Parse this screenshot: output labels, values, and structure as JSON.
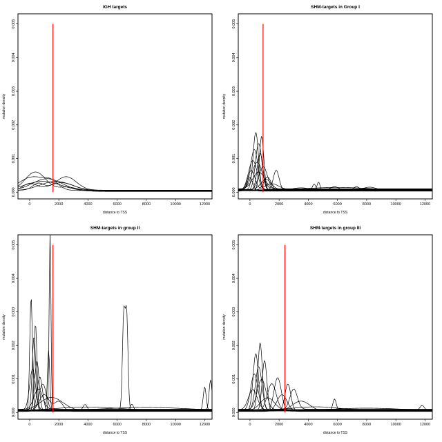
{
  "chart_data": [
    {
      "type": "line",
      "title": "IGH targets",
      "xlabel": "distance to TSS",
      "ylabel": "mutation density",
      "xlim": [
        -800,
        12500
      ],
      "ylim": [
        -0.0002,
        0.0053
      ],
      "x_ticks": [
        0,
        2000,
        4000,
        6000,
        8000,
        10000,
        12000
      ],
      "y_ticks": [
        0.0,
        0.001,
        0.002,
        0.003,
        0.004,
        0.005
      ],
      "y_tick_labels": [
        "0.000",
        "0.001",
        "0.002",
        "0.003",
        "0.004",
        "0.005"
      ],
      "reference_line": {
        "x": 1600,
        "y_top": 0.005,
        "color": "#ff0000"
      },
      "series_color": "#000000",
      "series": [
        {
          "peaks": [
            [
              400,
              0.00055,
              700
            ],
            [
              2600,
              0.0001,
              600
            ]
          ],
          "base": 5e-05
        },
        {
          "peaks": [
            [
              200,
              0.0004,
              900
            ],
            [
              1500,
              0.0002,
              500
            ]
          ],
          "base": 5e-05
        },
        {
          "peaks": [
            [
              1200,
              0.00035,
              1000
            ]
          ],
          "base": 5e-05
        },
        {
          "peaks": [
            [
              2500,
              0.0004,
              700
            ],
            [
              600,
              0.0002,
              400
            ]
          ],
          "base": 6e-05
        },
        {
          "peaks": [
            [
              1800,
              0.00028,
              1100
            ]
          ],
          "base": 4e-05
        },
        {
          "peaks": [
            [
              0,
              0.00022,
              500
            ],
            [
              2200,
              0.00025,
              900
            ]
          ],
          "base": 3e-05
        },
        {
          "peaks": [
            [
              900,
              0.0003,
              1300
            ]
          ],
          "base": 2e-05
        }
      ]
    },
    {
      "type": "line",
      "title": "SHM-targets in Group I",
      "xlabel": "distance to TSS",
      "ylabel": "mutation density",
      "xlim": [
        -800,
        12500
      ],
      "ylim": [
        -0.0002,
        0.0053
      ],
      "x_ticks": [
        0,
        2000,
        4000,
        6000,
        8000,
        10000,
        12000
      ],
      "y_ticks": [
        0.0,
        0.001,
        0.002,
        0.003,
        0.004,
        0.005
      ],
      "y_tick_labels": [
        "0.000",
        "0.001",
        "0.002",
        "0.003",
        "0.004",
        "0.005"
      ],
      "reference_line": {
        "x": 900,
        "y_top": 0.005,
        "color": "#ff0000"
      },
      "series_color": "#000000",
      "series": [
        {
          "peaks": [
            [
              400,
              0.0017,
              180
            ]
          ],
          "base": 8e-05
        },
        {
          "peaks": [
            [
              800,
              0.0016,
              150
            ]
          ],
          "base": 6e-05
        },
        {
          "peaks": [
            [
              600,
              0.0014,
              220
            ]
          ],
          "base": 5e-05
        },
        {
          "peaks": [
            [
              300,
              0.0012,
              250
            ]
          ],
          "base": 7e-05
        },
        {
          "peaks": [
            [
              700,
              0.0011,
              200
            ],
            [
              1800,
              0.0006,
              200
            ]
          ],
          "base": 5e-05
        },
        {
          "peaks": [
            [
              200,
              0.0009,
              300
            ]
          ],
          "base": 4e-05
        },
        {
          "peaks": [
            [
              500,
              0.0008,
              350
            ]
          ],
          "base": 9e-05
        },
        {
          "peaks": [
            [
              900,
              0.0007,
              300
            ]
          ],
          "base": 6e-05
        },
        {
          "peaks": [
            [
              100,
              0.0006,
              250
            ],
            [
              1200,
              0.0004,
              250
            ]
          ],
          "base": 5e-05
        },
        {
          "peaks": [
            [
              600,
              0.0005,
              400
            ]
          ],
          "base": 0.0001
        },
        {
          "peaks": [
            [
              0,
              0.0004,
              200
            ]
          ],
          "base": 3e-05
        },
        {
          "peaks": [
            [
              1100,
              0.0003,
              350
            ]
          ],
          "base": 8e-05
        },
        {
          "peaks": [
            [
              4400,
              0.0002,
              120
            ]
          ],
          "base": 4e-05
        },
        {
          "peaks": [
            [
              4700,
              0.00025,
              100
            ]
          ],
          "base": 5e-05
        },
        {
          "peaks": [
            [
              5800,
              0.0001,
              300
            ],
            [
              7300,
              0.0001,
              200
            ]
          ],
          "base": 6e-05
        },
        {
          "peaks": [
            [
              8200,
              8e-05,
              400
            ]
          ],
          "base": 7e-05
        },
        {
          "peaks": [
            [
              1500,
              0.0002,
              500
            ],
            [
              3500,
              8e-05,
              600
            ]
          ],
          "base": 5e-05
        },
        {
          "peaks": [
            [
              6000,
              0.0001,
              2500
            ]
          ],
          "base": 4e-05
        }
      ]
    },
    {
      "type": "line",
      "title": "SHM-targets in group II",
      "xlabel": "distance to TSS",
      "ylabel": "mutation density",
      "xlim": [
        -800,
        12500
      ],
      "ylim": [
        -0.0002,
        0.0053
      ],
      "x_ticks": [
        0,
        2000,
        4000,
        6000,
        8000,
        10000,
        12000
      ],
      "y_ticks": [
        0.0,
        0.001,
        0.002,
        0.003,
        0.004,
        0.005
      ],
      "y_tick_labels": [
        "0.000",
        "0.001",
        "0.002",
        "0.003",
        "0.004",
        "0.005"
      ],
      "reference_line": {
        "x": 1600,
        "y_top": 0.005,
        "color": "#ff0000"
      },
      "series_color": "#000000",
      "series": [
        {
          "peaks": [
            [
              1400,
              0.0053,
              60
            ]
          ],
          "base": 8e-05
        },
        {
          "peaks": [
            [
              100,
              0.0034,
              90
            ]
          ],
          "base": 6e-05
        },
        {
          "peaks": [
            [
              400,
              0.0026,
              100
            ]
          ],
          "base": 5e-05
        },
        {
          "peaks": [
            [
              300,
              0.0022,
              120
            ]
          ],
          "base": 7e-05
        },
        {
          "peaks": [
            [
              1300,
              0.0018,
              80
            ]
          ],
          "base": 5e-05
        },
        {
          "peaks": [
            [
              500,
              0.0015,
              150
            ]
          ],
          "base": 4e-05
        },
        {
          "peaks": [
            [
              200,
              0.0012,
              200
            ]
          ],
          "base": 9e-05
        },
        {
          "peaks": [
            [
              700,
              0.001,
              180
            ]
          ],
          "base": 6e-05
        },
        {
          "peaks": [
            [
              900,
              0.0008,
              250
            ]
          ],
          "base": 5e-05
        },
        {
          "peaks": [
            [
              600,
              0.0006,
              300
            ]
          ],
          "base": 0.0001
        },
        {
          "peaks": [
            [
              1000,
              0.0005,
              350
            ],
            [
              2000,
              0.0003,
              300
            ]
          ],
          "base": 3e-05
        },
        {
          "peaks": [
            [
              6450,
              0.0028,
              90
            ],
            [
              6650,
              0.0028,
              90
            ]
          ],
          "base": 8e-05
        },
        {
          "peaks": [
            [
              3800,
              0.0002,
              150
            ]
          ],
          "base": 4e-05
        },
        {
          "peaks": [
            [
              7000,
              0.0002,
              120
            ]
          ],
          "base": 5e-05
        },
        {
          "peaks": [
            [
              12000,
              0.0007,
              100
            ]
          ],
          "base": 6e-05
        },
        {
          "peaks": [
            [
              12400,
              0.0009,
              100
            ]
          ],
          "base": 7e-05
        },
        {
          "peaks": [
            [
              8000,
              0.0001,
              3000
            ]
          ],
          "base": 5e-05
        },
        {
          "peaks": [
            [
              4000,
              0.00012,
              2500
            ]
          ],
          "base": 4e-05
        },
        {
          "peaks": [
            [
              1500,
              0.0004,
              800
            ]
          ],
          "base": 5e-05
        }
      ]
    },
    {
      "type": "line",
      "title": "SHM-targets in group III",
      "xlabel": "distance to TSS",
      "ylabel": "mutation density",
      "xlim": [
        -800,
        12500
      ],
      "ylim": [
        -0.0002,
        0.0053
      ],
      "x_ticks": [
        0,
        2000,
        4000,
        6000,
        8000,
        10000,
        12000
      ],
      "y_ticks": [
        0.0,
        0.001,
        0.002,
        0.003,
        0.004,
        0.005
      ],
      "y_tick_labels": [
        "0.000",
        "0.001",
        "0.002",
        "0.003",
        "0.004",
        "0.005"
      ],
      "reference_line": {
        "x": 2400,
        "y_top": 0.005,
        "color": "#ff0000"
      },
      "series_color": "#000000",
      "series": [
        {
          "peaks": [
            [
              700,
              0.002,
              150
            ]
          ],
          "base": 8e-05
        },
        {
          "peaks": [
            [
              400,
              0.0017,
              180
            ]
          ],
          "base": 6e-05
        },
        {
          "peaks": [
            [
              1000,
              0.0015,
              160
            ]
          ],
          "base": 5e-05
        },
        {
          "peaks": [
            [
              600,
              0.0013,
              220
            ]
          ],
          "base": 7e-05
        },
        {
          "peaks": [
            [
              300,
              0.0011,
              250
            ]
          ],
          "base": 5e-05
        },
        {
          "peaks": [
            [
              1900,
              0.001,
              250
            ]
          ],
          "base": 4e-05
        },
        {
          "peaks": [
            [
              800,
              0.0009,
              300
            ]
          ],
          "base": 9e-05
        },
        {
          "peaks": [
            [
              1500,
              0.0008,
              300
            ]
          ],
          "base": 6e-05
        },
        {
          "peaks": [
            [
              2600,
              0.0008,
              200
            ]
          ],
          "base": 5e-05
        },
        {
          "peaks": [
            [
              3000,
              0.0006,
              250
            ]
          ],
          "base": 0.0001
        },
        {
          "peaks": [
            [
              2200,
              0.0005,
              350
            ]
          ],
          "base": 3e-05
        },
        {
          "peaks": [
            [
              200,
              0.0006,
              300
            ]
          ],
          "base": 8e-05
        },
        {
          "peaks": [
            [
              1200,
              0.0004,
              500
            ]
          ],
          "base": 4e-05
        },
        {
          "peaks": [
            [
              5800,
              0.00035,
              120
            ]
          ],
          "base": 5e-05
        },
        {
          "peaks": [
            [
              11800,
              0.00015,
              150
            ]
          ],
          "base": 6e-05
        },
        {
          "peaks": [
            [
              4500,
              0.0001,
              1500
            ]
          ],
          "base": 7e-05
        },
        {
          "peaks": [
            [
              8000,
              8e-05,
              2500
            ]
          ],
          "base": 5e-05
        },
        {
          "peaks": [
            [
              3500,
              0.0003,
              600
            ]
          ],
          "base": 4e-05
        }
      ]
    }
  ]
}
